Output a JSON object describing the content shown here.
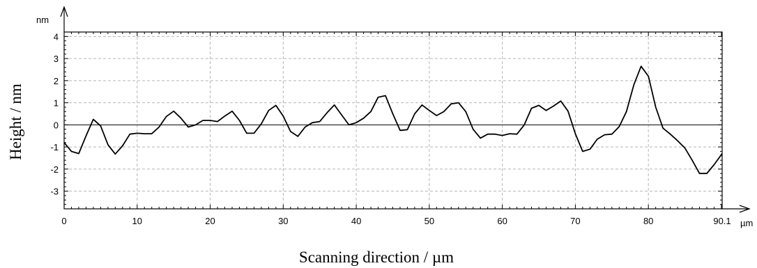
{
  "chart_data": {
    "type": "line",
    "xlabel": "Scanning direction / µm",
    "ylabel": "Height / nm",
    "x_unit": "µm",
    "y_unit": "nm",
    "xlim": [
      0,
      90.1
    ],
    "ylim": [
      -3.8,
      4.2
    ],
    "x_ticks": [
      "0",
      "10",
      "20",
      "30",
      "40",
      "50",
      "60",
      "70",
      "80",
      "90.1"
    ],
    "y_ticks": [
      "-3",
      "-2",
      "-1",
      "0",
      "1",
      "2",
      "3",
      "4"
    ],
    "grid": true,
    "zero_line": true,
    "series": [
      {
        "x": [
          0,
          1,
          2,
          3,
          4,
          5,
          6,
          7,
          8,
          9,
          10,
          11,
          12,
          13,
          14,
          15,
          16,
          17,
          18,
          19,
          20,
          21,
          22,
          23,
          24,
          25,
          26,
          27,
          28,
          29,
          30,
          31,
          32,
          33,
          34,
          35,
          36,
          37,
          38,
          39,
          40,
          41,
          42,
          43,
          44,
          45,
          46,
          47,
          48,
          49,
          50,
          51,
          52,
          53,
          54,
          55,
          56,
          57,
          58,
          59,
          60,
          61,
          62,
          63,
          64,
          65,
          66,
          67,
          68,
          69,
          70,
          71,
          72,
          73,
          74,
          75,
          76,
          77,
          78,
          79,
          80,
          81,
          82,
          83,
          84,
          85,
          86,
          87,
          88,
          89,
          90.1
        ],
        "y": [
          -0.8,
          -1.2,
          -1.3,
          -0.5,
          0.25,
          -0.05,
          -0.9,
          -1.32,
          -0.95,
          -0.42,
          -0.38,
          -0.4,
          -0.4,
          -0.1,
          0.38,
          0.62,
          0.3,
          -0.1,
          0.0,
          0.2,
          0.2,
          0.15,
          0.4,
          0.62,
          0.2,
          -0.38,
          -0.38,
          0.05,
          0.65,
          0.88,
          0.4,
          -0.3,
          -0.52,
          -0.1,
          0.1,
          0.15,
          0.55,
          0.9,
          0.45,
          0.0,
          0.1,
          0.3,
          0.6,
          1.25,
          1.32,
          0.5,
          -0.25,
          -0.22,
          0.5,
          0.9,
          0.65,
          0.42,
          0.6,
          0.95,
          1.0,
          0.6,
          -0.2,
          -0.6,
          -0.42,
          -0.42,
          -0.48,
          -0.4,
          -0.42,
          0.0,
          0.75,
          0.88,
          0.65,
          0.85,
          1.08,
          0.62,
          -0.4,
          -1.2,
          -1.1,
          -0.65,
          -0.45,
          -0.42,
          -0.08,
          0.6,
          1.8,
          2.65,
          2.2,
          0.8,
          -0.15,
          -0.42,
          -0.72,
          -1.05,
          -1.6,
          -2.2,
          -2.2,
          -1.8,
          -1.3
        ]
      }
    ]
  }
}
